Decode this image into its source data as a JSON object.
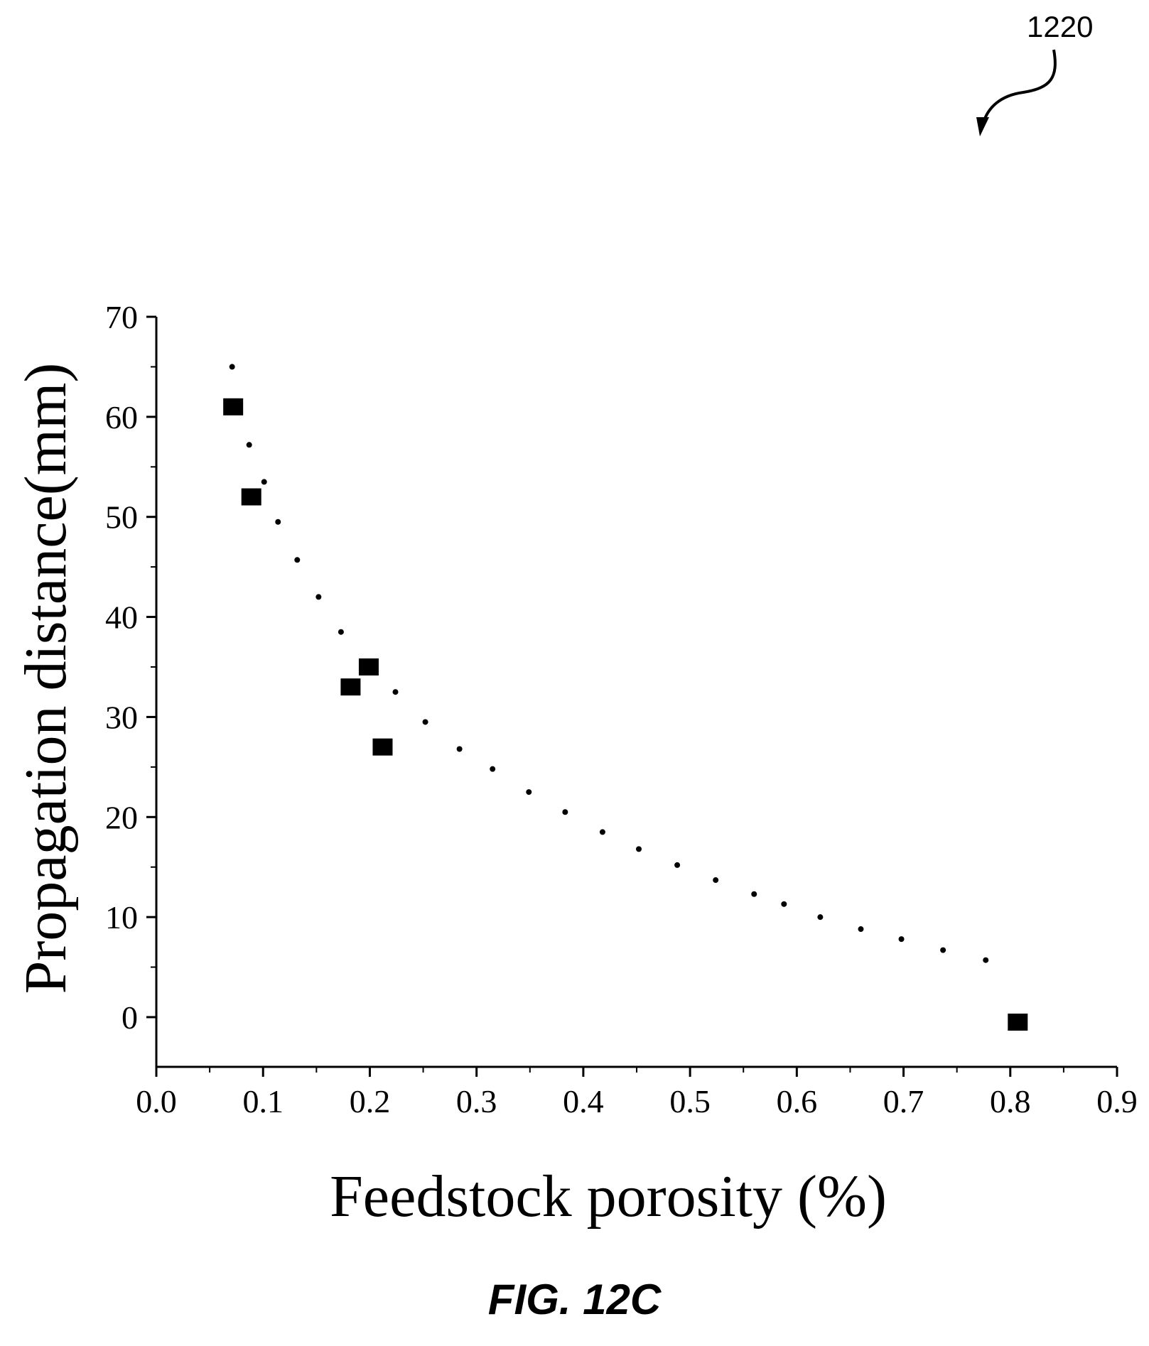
{
  "figure": {
    "reference_numeral": "1220",
    "caption": "FIG. 12C"
  },
  "colors": {
    "ink": "#000000",
    "background": "#ffffff"
  },
  "chart_data": {
    "type": "scatter",
    "title": "",
    "xlabel": "Feedstock porosity (%)",
    "ylabel": "Propagation distance(mm)",
    "xlim": [
      0.0,
      0.9
    ],
    "ylim": [
      -5,
      70
    ],
    "xticks": [
      "0.0",
      "0.1",
      "0.2",
      "0.3",
      "0.4",
      "0.5",
      "0.6",
      "0.7",
      "0.8",
      "0.9"
    ],
    "yticks": [
      "0",
      "10",
      "20",
      "30",
      "40",
      "50",
      "60",
      "70"
    ],
    "grid": false,
    "legend": "none",
    "series": [
      {
        "marker": "filled-square",
        "points": [
          [
            0.072,
            61.0
          ],
          [
            0.089,
            52.0
          ],
          [
            0.182,
            33.0
          ],
          [
            0.199,
            35.0
          ],
          [
            0.212,
            27.0
          ],
          [
            0.807,
            -0.5
          ]
        ]
      },
      {
        "marker": "small-dot",
        "points": [
          [
            0.071,
            65.0
          ],
          [
            0.087,
            57.2
          ],
          [
            0.101,
            53.5
          ],
          [
            0.114,
            49.5
          ],
          [
            0.132,
            45.7
          ],
          [
            0.152,
            42.0
          ],
          [
            0.173,
            38.5
          ],
          [
            0.224,
            32.5
          ],
          [
            0.252,
            29.5
          ],
          [
            0.284,
            26.8
          ],
          [
            0.315,
            24.8
          ],
          [
            0.349,
            22.5
          ],
          [
            0.383,
            20.5
          ],
          [
            0.418,
            18.5
          ],
          [
            0.452,
            16.8
          ],
          [
            0.488,
            15.2
          ],
          [
            0.524,
            13.7
          ],
          [
            0.56,
            12.3
          ],
          [
            0.588,
            11.3
          ],
          [
            0.622,
            10.0
          ],
          [
            0.66,
            8.8
          ],
          [
            0.698,
            7.8
          ],
          [
            0.737,
            6.7
          ],
          [
            0.777,
            5.7
          ]
        ]
      }
    ]
  }
}
